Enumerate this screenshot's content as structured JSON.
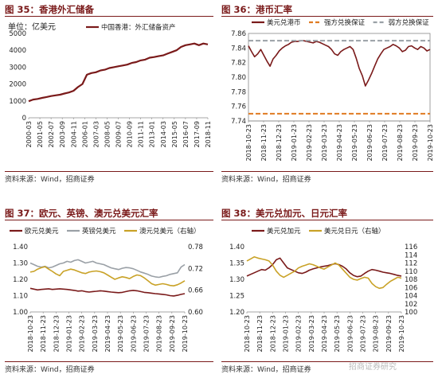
{
  "panels": [
    {
      "title": "图 35：香港外汇储备",
      "source": "资料来源：Wind，招商证券",
      "chart_data": {
        "type": "line",
        "unit_label": "单位：亿美元",
        "ylim": [
          0,
          5000
        ],
        "yticks": [
          0,
          1000,
          2000,
          3000,
          4000,
          5000
        ],
        "x_ticks": [
          "2000-03",
          "2001-05",
          "2002-07",
          "2003-09",
          "2004-11",
          "2006-01",
          "2007-03",
          "2008-05",
          "2009-07",
          "2010-09",
          "2011-11",
          "2013-01",
          "2014-03",
          "2015-05",
          "2016-07",
          "2017-09",
          "2018-11"
        ],
        "series": [
          {
            "name": "中国香港：外汇储备资产",
            "color": "#7a1a1a",
            "values": [
              980,
              1080,
              1120,
              1180,
              1230,
              1290,
              1330,
              1370,
              1440,
              1500,
              1600,
              1820,
              2000,
              2550,
              2650,
              2700,
              2800,
              2850,
              2950,
              3000,
              3050,
              3100,
              3150,
              3250,
              3300,
              3400,
              3450,
              3560,
              3600,
              3650,
              3700,
              3800,
              3900,
              4000,
              4200,
              4300,
              4350,
              4400,
              4300,
              4400,
              4350
            ]
          }
        ]
      }
    },
    {
      "title": "图 36：港币汇率",
      "source": "资料来源：Wind，招商证券",
      "chart_data": {
        "type": "line",
        "ylim": [
          7.74,
          7.86
        ],
        "yticks": [
          7.74,
          7.76,
          7.78,
          7.8,
          7.82,
          7.84,
          7.86
        ],
        "x_ticks": [
          "2018-10-23",
          "2018-11-23",
          "2018-12-23",
          "2019-01-23",
          "2019-02-23",
          "2019-03-23",
          "2019-04-23",
          "2019-05-23",
          "2019-06-23",
          "2019-07-23",
          "2019-08-23",
          "2019-09-23",
          "2019-10-23"
        ],
        "series": [
          {
            "name": "美元兑港币",
            "color": "#7a1a1a",
            "values": [
              7.843,
              7.835,
              7.828,
              7.832,
              7.838,
              7.83,
              7.822,
              7.815,
              7.825,
              7.83,
              7.836,
              7.84,
              7.843,
              7.845,
              7.848,
              7.849,
              7.849,
              7.85,
              7.85,
              7.849,
              7.848,
              7.847,
              7.849,
              7.848,
              7.846,
              7.844,
              7.842,
              7.838,
              7.832,
              7.83,
              7.835,
              7.838,
              7.84,
              7.842,
              7.838,
              7.826,
              7.812,
              7.802,
              7.788,
              7.796,
              7.805,
              7.815,
              7.825,
              7.832,
              7.838,
              7.84,
              7.842,
              7.845,
              7.843,
              7.84,
              7.835,
              7.837,
              7.842,
              7.843,
              7.84,
              7.838,
              7.842,
              7.84,
              7.836,
              7.838
            ]
          },
          {
            "name": "强方兑换保证",
            "color": "#e07b22",
            "dashed": true,
            "values": [
              7.75
            ]
          },
          {
            "name": "弱方兑换保证",
            "color": "#9aa0a6",
            "dashed": true,
            "values": [
              7.85
            ]
          }
        ]
      }
    },
    {
      "title": "图 37：欧元、英镑、澳元兑美元汇率",
      "source": "资料来源：Wind，招商证券",
      "chart_data": {
        "type": "line",
        "ylim": [
          1.0,
          1.4
        ],
        "yticks": [
          1.0,
          1.1,
          1.2,
          1.3,
          1.4
        ],
        "ylim_right": [
          0.6,
          0.78
        ],
        "yticks_right": [
          0.6,
          0.66,
          0.72,
          0.78
        ],
        "x_ticks": [
          "2018-10-23",
          "2018-11-23",
          "2018-12-23",
          "2019-01-23",
          "2019-02-23",
          "2019-03-23",
          "2019-04-23",
          "2019-05-23",
          "2019-06-23",
          "2019-07-23",
          "2019-08-23",
          "2019-09-23",
          "2019-10-23"
        ],
        "series": [
          {
            "name": "欧元兑美元",
            "color": "#7a1a1a",
            "axis": "left",
            "values": [
              1.145,
              1.14,
              1.135,
              1.138,
              1.14,
              1.142,
              1.138,
              1.14,
              1.142,
              1.14,
              1.138,
              1.135,
              1.132,
              1.128,
              1.13,
              1.125,
              1.122,
              1.125,
              1.127,
              1.13,
              1.128,
              1.125,
              1.122,
              1.12,
              1.118,
              1.12,
              1.125,
              1.13,
              1.132,
              1.13,
              1.125,
              1.12,
              1.118,
              1.115,
              1.112,
              1.11,
              1.108,
              1.105,
              1.1,
              1.098,
              1.102,
              1.108,
              1.112
            ]
          },
          {
            "name": "英镑兑美元",
            "color": "#9aa0a6",
            "axis": "left",
            "values": [
              1.3,
              1.29,
              1.28,
              1.275,
              1.28,
              1.27,
              1.275,
              1.285,
              1.295,
              1.3,
              1.31,
              1.305,
              1.315,
              1.32,
              1.31,
              1.3,
              1.305,
              1.31,
              1.3,
              1.295,
              1.29,
              1.28,
              1.27,
              1.265,
              1.26,
              1.268,
              1.272,
              1.27,
              1.265,
              1.255,
              1.245,
              1.238,
              1.23,
              1.22,
              1.215,
              1.212,
              1.218,
              1.222,
              1.23,
              1.235,
              1.24,
              1.275,
              1.29
            ]
          },
          {
            "name": "澳元兑美元（右轴）",
            "color": "#c9a227",
            "axis": "right",
            "values": [
              0.71,
              0.712,
              0.718,
              0.722,
              0.725,
              0.718,
              0.712,
              0.705,
              0.7,
              0.712,
              0.715,
              0.718,
              0.716,
              0.712,
              0.708,
              0.706,
              0.71,
              0.712,
              0.713,
              0.711,
              0.708,
              0.702,
              0.696,
              0.69,
              0.694,
              0.697,
              0.695,
              0.692,
              0.698,
              0.702,
              0.7,
              0.694,
              0.686,
              0.678,
              0.674,
              0.676,
              0.678,
              0.676,
              0.673,
              0.672,
              0.675,
              0.68,
              0.686
            ]
          }
        ]
      }
    },
    {
      "title": "图 38：美元兑加元、日元汇率",
      "source": "资料来源：Wind，招商证券",
      "chart_data": {
        "type": "line",
        "ylim": [
          1.2,
          1.4
        ],
        "yticks": [
          1.2,
          1.25,
          1.3,
          1.35,
          1.4
        ],
        "ylim_right": [
          100,
          116
        ],
        "yticks_right": [
          100,
          102,
          104,
          106,
          108,
          110,
          112,
          114,
          116
        ],
        "x_ticks": [
          "2018-10-23",
          "2018-11-23",
          "2018-12-23",
          "2019-01-23",
          "2019-02-23",
          "2019-03-23",
          "2019-04-23",
          "2019-05-23",
          "2019-06-23",
          "2019-07-23",
          "2019-08-23",
          "2019-09-23",
          "2019-10-23"
        ],
        "series": [
          {
            "name": "美元兑加元",
            "color": "#7a1a1a",
            "axis": "left",
            "values": [
              1.31,
              1.315,
              1.32,
              1.325,
              1.33,
              1.328,
              1.335,
              1.345,
              1.36,
              1.365,
              1.35,
              1.335,
              1.33,
              1.325,
              1.32,
              1.318,
              1.322,
              1.328,
              1.332,
              1.335,
              1.338,
              1.34,
              1.342,
              1.345,
              1.348,
              1.345,
              1.34,
              1.332,
              1.32,
              1.312,
              1.308,
              1.31,
              1.318,
              1.325,
              1.33,
              1.328,
              1.325,
              1.322,
              1.32,
              1.318,
              1.315,
              1.312,
              1.31
            ]
          },
          {
            "name": "美元兑日元（右轴）",
            "color": "#c9a227",
            "axis": "right",
            "values": [
              112.5,
              113.0,
              113.5,
              113.2,
              113.0,
              112.8,
              112.5,
              111.5,
              110.0,
              109.0,
              108.5,
              109.0,
              109.5,
              110.0,
              110.8,
              111.2,
              111.5,
              111.8,
              111.6,
              111.2,
              110.8,
              110.5,
              111.0,
              111.5,
              112.0,
              111.5,
              110.5,
              109.5,
              108.5,
              108.0,
              107.8,
              108.2,
              108.5,
              108.3,
              107.0,
              106.2,
              105.8,
              106.0,
              106.8,
              107.5,
              108.0,
              108.5,
              108.3
            ]
          }
        ]
      }
    }
  ],
  "watermark": "招商证券研究"
}
